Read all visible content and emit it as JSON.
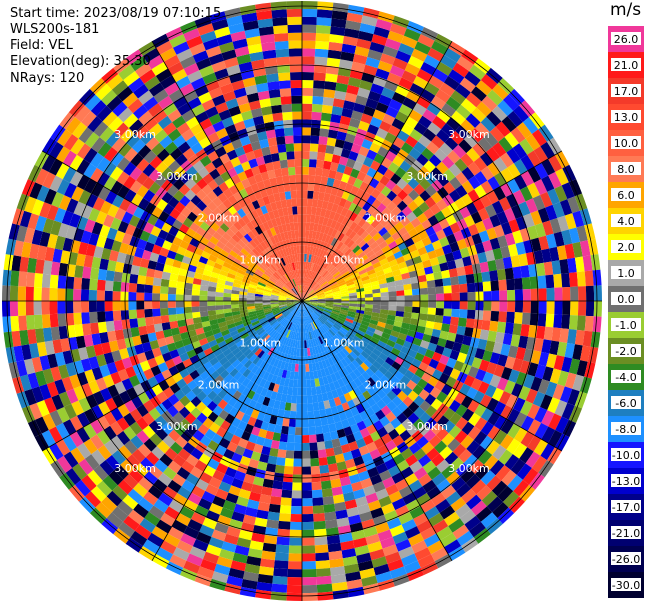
{
  "info": {
    "start_time": "Start time: 2023/08/19 07:10:15",
    "instrument": "WLS200s-181",
    "field": "Field: VEL",
    "elevation": "Elevation(deg): 35.30",
    "nrays": "NRays: 120"
  },
  "colorbar": {
    "unit": "m/s",
    "bins": [
      {
        "label": "26.0",
        "color": "#f0389a"
      },
      {
        "label": "21.0",
        "color": "#ff1a1a"
      },
      {
        "label": "17.0",
        "color": "#f43a2a"
      },
      {
        "label": "13.0",
        "color": "#ff4a30"
      },
      {
        "label": "10.0",
        "color": "#ff6040"
      },
      {
        "label": "8.0",
        "color": "#ff7a55"
      },
      {
        "label": "6.0",
        "color": "#ffa500"
      },
      {
        "label": "4.0",
        "color": "#ffd400"
      },
      {
        "label": "2.0",
        "color": "#ffff00"
      },
      {
        "label": "1.0",
        "color": "#a9a9a9"
      },
      {
        "label": "0.0",
        "color": "#707070"
      },
      {
        "label": "-1.0",
        "color": "#9acd32"
      },
      {
        "label": "-2.0",
        "color": "#6b8e23"
      },
      {
        "label": "-4.0",
        "color": "#2e8b22"
      },
      {
        "label": "-6.0",
        "color": "#1e7fc0"
      },
      {
        "label": "-8.0",
        "color": "#1e90ff"
      },
      {
        "label": "-10.0",
        "color": "#1515ff"
      },
      {
        "label": "-13.0",
        "color": "#0000cd"
      },
      {
        "label": "-17.0",
        "color": "#00008b"
      },
      {
        "label": "-21.0",
        "color": "#000070"
      },
      {
        "label": "-26.0",
        "color": "#000050"
      },
      {
        "label": "-30.0",
        "color": "#000030"
      }
    ]
  },
  "chart_data": {
    "type": "heatmap",
    "projection": "polar PPI",
    "field": "VEL",
    "unit": "m/s",
    "nrays": 120,
    "range_rings": [
      {
        "label": "1.00km",
        "ring": 1
      },
      {
        "label": "2.00km",
        "ring": 2
      },
      {
        "label": "3.00km",
        "ring": 3
      },
      {
        "label": "3.00km",
        "ring": 4
      }
    ],
    "ring_label_texts": {
      "r1": [
        "1.00km",
        "1.00km",
        "1.00km",
        "1.00km"
      ],
      "r2": [
        "2.00km",
        "2.00km",
        "2.00km",
        "2.00km"
      ],
      "r3": [
        "3.00km",
        "3.00km",
        "3.00km",
        "3.00km"
      ],
      "r4": [
        "3.00km",
        "3.00km",
        "3.00km",
        "3.00km"
      ]
    },
    "pattern": "north sector positive (orange/red), south sector negative (blue/green), near-zero along east-west axis; noisy random colors at far range"
  }
}
